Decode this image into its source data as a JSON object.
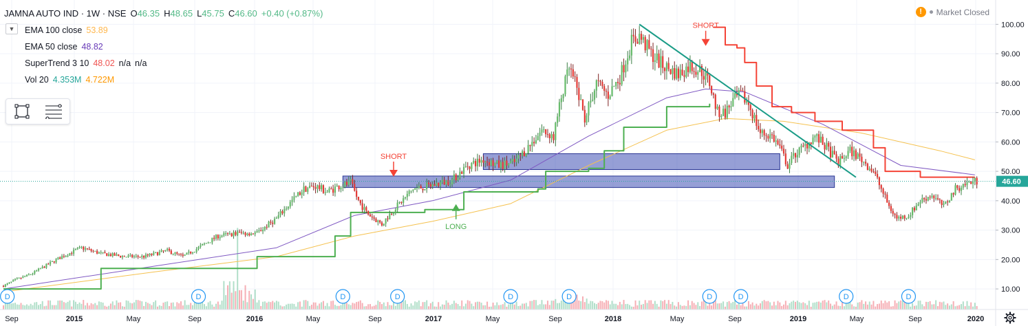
{
  "header": {
    "symbol": "JAMNA AUTO IND · 1W · NSE",
    "ohlc": [
      {
        "k": "O",
        "v": "46.35"
      },
      {
        "k": "H",
        "v": "48.65"
      },
      {
        "k": "L",
        "v": "45.75"
      },
      {
        "k": "C",
        "v": "46.60"
      },
      {
        "k": "",
        "v": "+0.40 (+0.87%)"
      }
    ]
  },
  "indicators": [
    {
      "name": "EMA 100 close",
      "values": [
        "53.89"
      ],
      "colors": [
        "#ffb74d"
      ]
    },
    {
      "name": "EMA 50 close",
      "values": [
        "48.82"
      ],
      "colors": [
        "#673ab7"
      ]
    },
    {
      "name": "SuperTrend 3 10",
      "values": [
        "48.02",
        "n/a",
        "n/a"
      ],
      "colors": [
        "#ef5350",
        "#131722",
        "#131722"
      ]
    },
    {
      "name": "Vol 20",
      "values": [
        "4.353M",
        "4.722M"
      ],
      "colors": [
        "#26a69a",
        "#ff9800"
      ]
    }
  ],
  "status": {
    "text": "Market Closed",
    "warn": "!"
  },
  "colors": {
    "up": "#53b987",
    "down": "#eb4d5c",
    "upBody": "#66bb6a",
    "downBody": "#e53935",
    "ema100": "#f5c14e",
    "ema50": "#7e57c2",
    "stUp": "#4caf50",
    "stDown": "#f44336",
    "trendline": "#1a9c87",
    "zone": "#3f51b5",
    "grid": "#f0f3fa",
    "price": "#26a69a"
  },
  "icons": {
    "collapse": "chevron-down-icon",
    "rect": "rectangle-tool-icon",
    "lines": "lines-tool-icon",
    "settings": "gear-icon"
  },
  "chart_data": {
    "type": "candlestick",
    "y_axis": {
      "ticks": [
        "10.00",
        "20.00",
        "30.00",
        "40.00",
        "50.00",
        "60.00",
        "70.00",
        "80.00",
        "90.00",
        "100.00"
      ],
      "ylim": [
        3,
        105
      ]
    },
    "x_axis": {
      "ticks": [
        "Sep",
        "2015",
        "May",
        "Sep",
        "2016",
        "May",
        "Sep",
        "2017",
        "May",
        "Sep",
        "2018",
        "May",
        "Sep",
        "2019",
        "May",
        "Sep",
        "2020"
      ]
    },
    "price_label": "46.60",
    "anchors": [
      [
        0,
        11
      ],
      [
        6,
        13
      ],
      [
        14,
        15
      ],
      [
        22,
        18
      ],
      [
        30,
        21
      ],
      [
        40,
        24
      ],
      [
        50,
        22
      ],
      [
        62,
        21
      ],
      [
        72,
        21
      ],
      [
        84,
        23
      ],
      [
        92,
        21
      ],
      [
        100,
        24
      ],
      [
        110,
        28
      ],
      [
        120,
        29
      ],
      [
        130,
        29
      ],
      [
        140,
        34
      ],
      [
        148,
        40
      ],
      [
        154,
        44
      ],
      [
        160,
        45
      ],
      [
        166,
        43
      ],
      [
        172,
        45
      ],
      [
        178,
        46
      ],
      [
        182,
        40
      ],
      [
        186,
        36
      ],
      [
        190,
        34
      ],
      [
        194,
        32
      ],
      [
        200,
        37
      ],
      [
        210,
        44
      ],
      [
        218,
        45
      ],
      [
        224,
        46
      ],
      [
        230,
        47
      ],
      [
        238,
        52
      ],
      [
        246,
        54
      ],
      [
        254,
        52
      ],
      [
        262,
        53
      ],
      [
        270,
        59
      ],
      [
        276,
        64
      ],
      [
        282,
        62
      ],
      [
        286,
        75
      ],
      [
        290,
        85
      ],
      [
        294,
        78
      ],
      [
        298,
        68
      ],
      [
        304,
        80
      ],
      [
        310,
        76
      ],
      [
        316,
        82
      ],
      [
        322,
        94
      ],
      [
        326,
        96
      ],
      [
        332,
        90
      ],
      [
        338,
        86
      ],
      [
        346,
        83
      ],
      [
        352,
        86
      ],
      [
        358,
        84
      ],
      [
        362,
        80
      ],
      [
        366,
        70
      ],
      [
        370,
        70
      ],
      [
        374,
        74
      ],
      [
        378,
        76
      ],
      [
        382,
        73
      ],
      [
        388,
        63
      ],
      [
        394,
        62
      ],
      [
        398,
        58
      ],
      [
        402,
        52
      ],
      [
        406,
        56
      ],
      [
        410,
        58
      ],
      [
        416,
        62
      ],
      [
        422,
        58
      ],
      [
        428,
        53
      ],
      [
        434,
        57
      ],
      [
        440,
        54
      ],
      [
        446,
        50
      ],
      [
        450,
        44
      ],
      [
        454,
        38
      ],
      [
        458,
        34
      ],
      [
        464,
        35
      ],
      [
        470,
        40
      ],
      [
        476,
        42
      ],
      [
        482,
        38
      ],
      [
        488,
        44
      ],
      [
        494,
        46
      ],
      [
        498,
        46.6
      ]
    ],
    "ema50": [
      [
        0,
        10
      ],
      [
        80,
        18
      ],
      [
        140,
        24
      ],
      [
        180,
        35
      ],
      [
        220,
        40
      ],
      [
        260,
        47
      ],
      [
        300,
        62
      ],
      [
        340,
        75
      ],
      [
        360,
        78
      ],
      [
        380,
        77
      ],
      [
        420,
        66
      ],
      [
        460,
        52
      ],
      [
        498,
        48.8
      ]
    ],
    "ema100": [
      [
        0,
        9
      ],
      [
        80,
        16
      ],
      [
        140,
        21
      ],
      [
        180,
        28
      ],
      [
        220,
        33
      ],
      [
        260,
        39
      ],
      [
        300,
        52
      ],
      [
        340,
        64
      ],
      [
        370,
        68
      ],
      [
        400,
        67
      ],
      [
        440,
        63
      ],
      [
        480,
        57
      ],
      [
        498,
        53.9
      ]
    ],
    "supertrend": [
      {
        "dir": "up",
        "pts": [
          [
            0,
            10
          ],
          [
            40,
            10
          ],
          [
            50,
            17
          ],
          [
            120,
            17
          ],
          [
            130,
            21
          ],
          [
            160,
            21
          ],
          [
            170,
            28
          ],
          [
            178,
            36
          ],
          [
            210,
            36
          ],
          [
            216,
            37
          ],
          [
            232,
            37
          ],
          [
            236,
            43
          ],
          [
            274,
            44
          ],
          [
            278,
            50
          ],
          [
            300,
            51
          ],
          [
            308,
            57
          ],
          [
            318,
            65
          ],
          [
            336,
            65
          ],
          [
            340,
            72
          ],
          [
            362,
            73
          ]
        ]
      },
      {
        "dir": "down",
        "pts": [
          [
            364,
            99
          ],
          [
            370,
            93
          ],
          [
            376,
            92
          ],
          [
            380,
            87
          ],
          [
            386,
            79
          ],
          [
            394,
            72
          ],
          [
            404,
            70
          ],
          [
            416,
            67
          ],
          [
            430,
            64
          ],
          [
            440,
            64
          ],
          [
            446,
            58
          ],
          [
            452,
            50
          ],
          [
            470,
            48
          ],
          [
            498,
            48
          ]
        ]
      }
    ],
    "trendline": [
      [
        326,
        100
      ],
      [
        437,
        48
      ]
    ],
    "zones": [
      {
        "x": [
          174,
          426
        ],
        "y": [
          44.5,
          48.4
        ]
      },
      {
        "x": [
          246,
          398
        ],
        "y": [
          50.6,
          56.0
        ]
      }
    ],
    "signals": [
      {
        "label": "SHORT",
        "x": 200,
        "y": 50.5,
        "dir": "down"
      },
      {
        "label": "LONG",
        "x": 232,
        "y": 36.5,
        "dir": "up"
      },
      {
        "label": "SHORT",
        "x": 360,
        "y": 95,
        "dir": "down"
      }
    ],
    "dividends": [
      "D",
      "D",
      "D",
      "D",
      "D",
      "D",
      "D",
      "D",
      "D",
      "D"
    ],
    "dividend_weeks": [
      2,
      100,
      174,
      202,
      260,
      290,
      362,
      378,
      432,
      464
    ]
  }
}
